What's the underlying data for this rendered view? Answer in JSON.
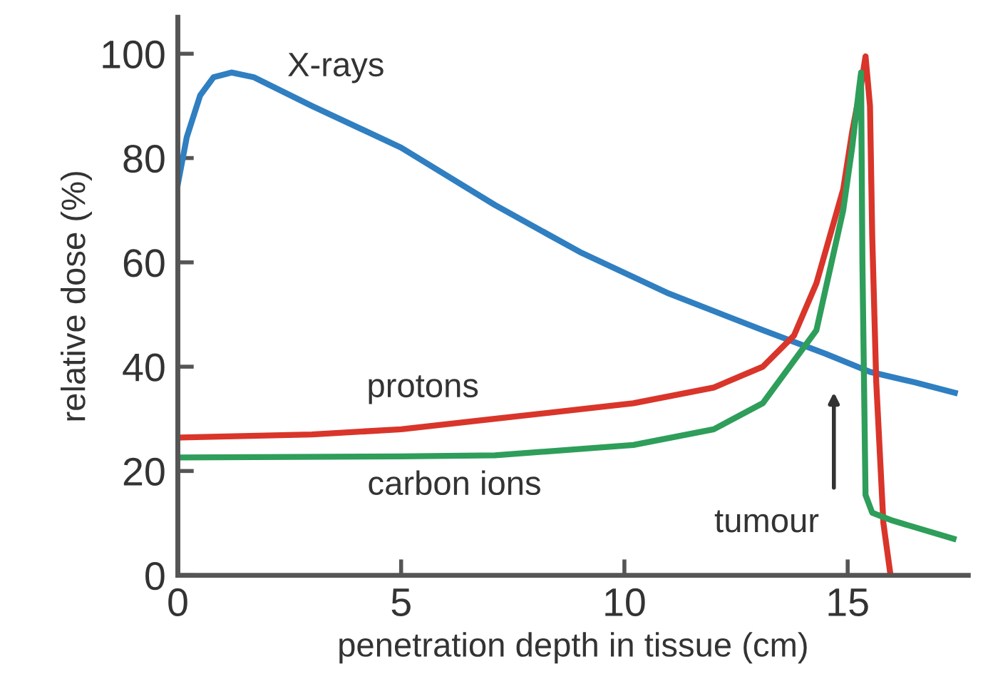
{
  "chart_data": {
    "type": "line",
    "xlabel": "penetration depth in tissue (cm)",
    "ylabel": "relative dose (%)",
    "xlim": [
      0,
      17.7
    ],
    "ylim": [
      0,
      107
    ],
    "xticks": [
      0,
      5,
      10,
      15
    ],
    "yticks": [
      0,
      20,
      40,
      60,
      80,
      100
    ],
    "grid": false,
    "legend": false,
    "marker": "none",
    "line_style": "solid",
    "series": [
      {
        "name": "X-rays",
        "color": "#2f7fc1",
        "x": [
          0,
          0.2,
          0.5,
          0.8,
          1.2,
          1.7,
          3,
          5,
          7.1,
          9,
          11,
          13.1,
          14.5,
          15.5,
          16.5,
          17.4
        ],
        "values": [
          75,
          84,
          92,
          95.5,
          96.4,
          95.5,
          90,
          82,
          71,
          62,
          54,
          47,
          42.5,
          39,
          37,
          35
        ]
      },
      {
        "name": "protons",
        "color": "#d9352a",
        "x": [
          0,
          3,
          5,
          7.1,
          10.2,
          12,
          13.1,
          13.8,
          14.3,
          14.9,
          15.1,
          15.3,
          15.4,
          15.5,
          15.55,
          15.64,
          15.8,
          15.96
        ],
        "values": [
          26.4,
          27,
          28,
          30,
          33,
          36,
          40,
          46,
          56,
          74,
          85,
          94,
          99.5,
          90,
          65,
          37,
          10,
          0
        ]
      },
      {
        "name": "carbon ions",
        "color": "#2e9e5a",
        "x": [
          0,
          5,
          7.1,
          10.2,
          12,
          13.1,
          14.3,
          14.9,
          15.1,
          15.25,
          15.3,
          15.33,
          15.4,
          15.55,
          16,
          17.37
        ],
        "values": [
          22.6,
          22.8,
          23,
          25,
          28,
          33,
          47,
          70,
          82,
          93,
          96.4,
          60,
          15.4,
          12,
          10.5,
          7
        ]
      }
    ],
    "annotations": [
      "tumour"
    ]
  }
}
